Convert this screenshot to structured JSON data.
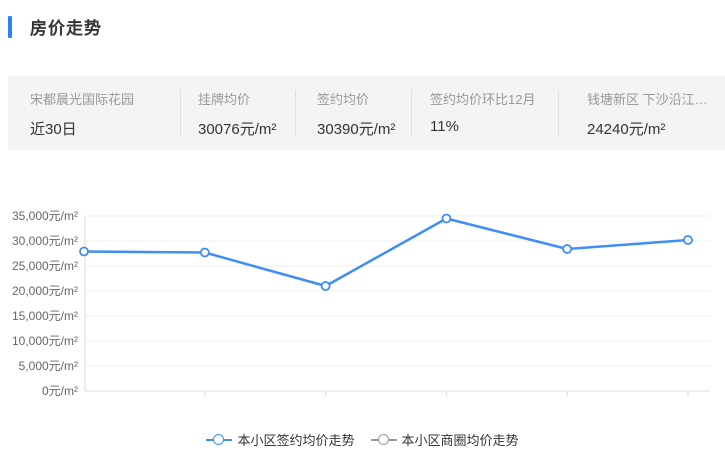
{
  "header": {
    "title": "房价走势"
  },
  "stats": {
    "items": [
      {
        "label": "宋都晨光国际花园",
        "value": "近30日"
      },
      {
        "label": "挂牌均价",
        "value": "30076元/m²"
      },
      {
        "label": "签约均价",
        "value": "30390元/m²"
      },
      {
        "label": "签约均价环比12月",
        "value": "11%"
      },
      {
        "label": "钱塘新区 下沙沿江…",
        "value": "24240元/m²"
      }
    ]
  },
  "chart_data": {
    "type": "line",
    "title": "房价走势",
    "x": [
      1,
      2,
      3,
      4,
      5,
      6
    ],
    "x_tick_labels": [
      "",
      "",
      "",
      "",
      "",
      ""
    ],
    "series": [
      {
        "name": "本小区签约均价走势",
        "color": "#3E8EF4",
        "visible": true,
        "values": [
          27900,
          27700,
          21000,
          34500,
          28400,
          30200
        ]
      },
      {
        "name": "本小区商圈均价走势",
        "color": "#999999",
        "visible": false,
        "values": []
      }
    ],
    "ylabel": "元/m²",
    "ylim": [
      0,
      35000
    ],
    "y_tick_step": 5000,
    "y_tick_labels": [
      "0元/m²",
      "5,000元/m²",
      "10,000元/m²",
      "15,000元/m²",
      "20,000元/m²",
      "25,000元/m²",
      "30,000元/m²",
      "35,000元/m²"
    ],
    "grid": true,
    "legend_position": "bottom-center",
    "point_style": "hollow-circle"
  },
  "colors": {
    "accent_blue": "#2E80F7",
    "line_blue": "#3E8EF4",
    "legend_gray": "#999999",
    "stats_bg": "#F4F4F4",
    "divider": "#E0E0E0",
    "grid_line": "#EFEFEF",
    "axis_line": "#DCDCDC",
    "y_label_gray": "#666666",
    "label_gray": "#999999",
    "text_dark": "#333333"
  }
}
